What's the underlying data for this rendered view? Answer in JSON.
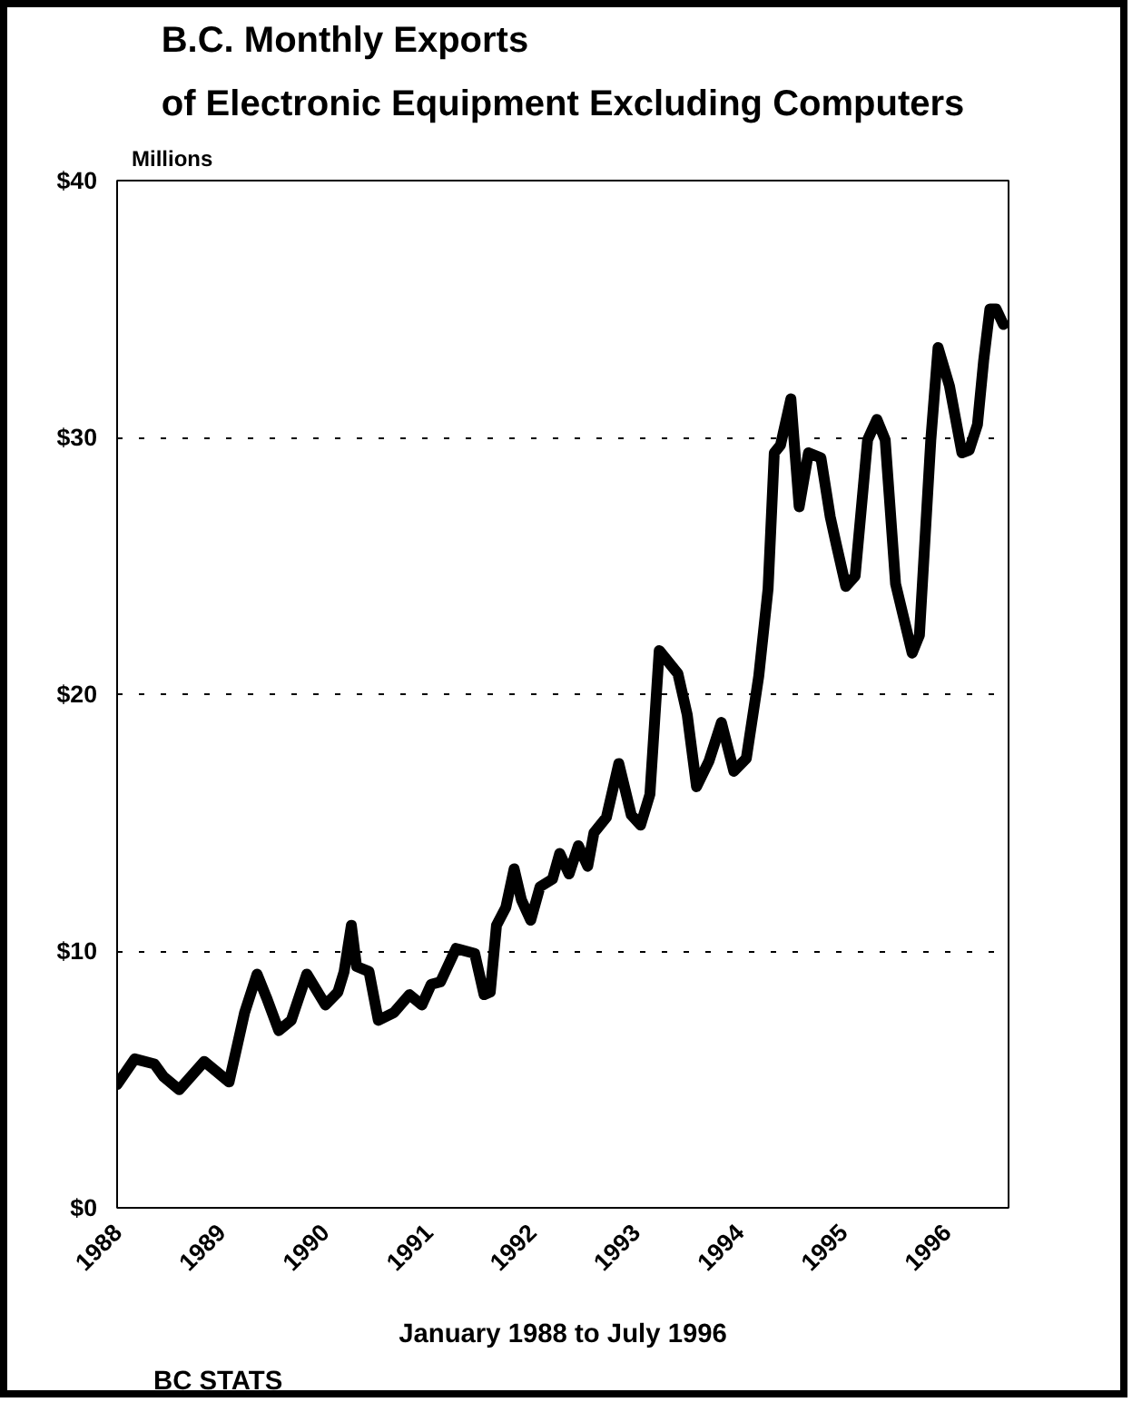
{
  "chart_data": {
    "type": "line",
    "title": "B.C. Monthly Exports\nof Electronic Equipment Excluding Computers",
    "ylabel": "Millions",
    "xlabel": "January 1988 to July 1996",
    "annotations": [
      "BC STATS"
    ],
    "xlim": [
      1988,
      1996.6
    ],
    "ylim": [
      0,
      40
    ],
    "xticks": [
      1988,
      1989,
      1990,
      1991,
      1992,
      1993,
      1994,
      1995,
      1996
    ],
    "yticks": [
      {
        "value": 0,
        "label": "$0"
      },
      {
        "value": 10,
        "label": "$10"
      },
      {
        "value": 20,
        "label": "$20"
      },
      {
        "value": 30,
        "label": "$30"
      },
      {
        "value": 40,
        "label": "$40"
      }
    ],
    "grid": "y",
    "marker": "none",
    "line_style": "solid",
    "series": [
      {
        "color": "#000000",
        "x": [
          1988.0,
          1988.17,
          1988.36,
          1988.45,
          1988.6,
          1988.84,
          1989.08,
          1989.23,
          1989.35,
          1989.44,
          1989.56,
          1989.68,
          1989.83,
          1990.01,
          1990.13,
          1990.19,
          1990.26,
          1990.31,
          1990.43,
          1990.52,
          1990.67,
          1990.82,
          1990.94,
          1991.03,
          1991.12,
          1991.27,
          1991.45,
          1991.54,
          1991.6,
          1991.66,
          1991.75,
          1991.83,
          1991.9,
          1991.99,
          1992.08,
          1992.2,
          1992.27,
          1992.36,
          1992.45,
          1992.54,
          1992.6,
          1992.72,
          1992.84,
          1992.96,
          1993.05,
          1993.14,
          1993.23,
          1993.41,
          1993.5,
          1993.59,
          1993.71,
          1993.83,
          1993.95,
          1994.07,
          1994.19,
          1994.28,
          1994.34,
          1994.4,
          1994.5,
          1994.58,
          1994.67,
          1994.79,
          1994.88,
          1994.94,
          1995.03,
          1995.12,
          1995.24,
          1995.33,
          1995.41,
          1995.51,
          1995.67,
          1995.74,
          1995.85,
          1995.92,
          1996.03,
          1996.15,
          1996.22,
          1996.3,
          1996.36,
          1996.42,
          1996.48,
          1996.55
        ],
        "values": [
          4.8,
          5.8,
          5.6,
          5.1,
          4.6,
          5.7,
          4.9,
          7.6,
          9.1,
          8.2,
          6.9,
          7.3,
          9.1,
          7.9,
          8.4,
          9.2,
          11.0,
          9.4,
          9.2,
          7.3,
          7.6,
          8.3,
          7.9,
          8.7,
          8.8,
          10.1,
          9.9,
          8.3,
          8.4,
          11.0,
          11.7,
          13.2,
          12.0,
          11.2,
          12.5,
          12.8,
          13.8,
          13.0,
          14.1,
          13.3,
          14.6,
          15.2,
          17.3,
          15.3,
          14.9,
          16.1,
          21.7,
          20.8,
          19.2,
          16.4,
          17.4,
          18.9,
          17.0,
          17.5,
          20.7,
          24.1,
          29.4,
          29.7,
          31.5,
          27.3,
          29.4,
          29.2,
          26.9,
          25.8,
          24.2,
          24.6,
          29.9,
          30.7,
          29.9,
          24.3,
          21.6,
          22.3,
          29.9,
          33.5,
          32.0,
          29.4,
          29.5,
          30.5,
          33.0,
          35.0,
          35.0,
          34.4
        ]
      }
    ]
  }
}
